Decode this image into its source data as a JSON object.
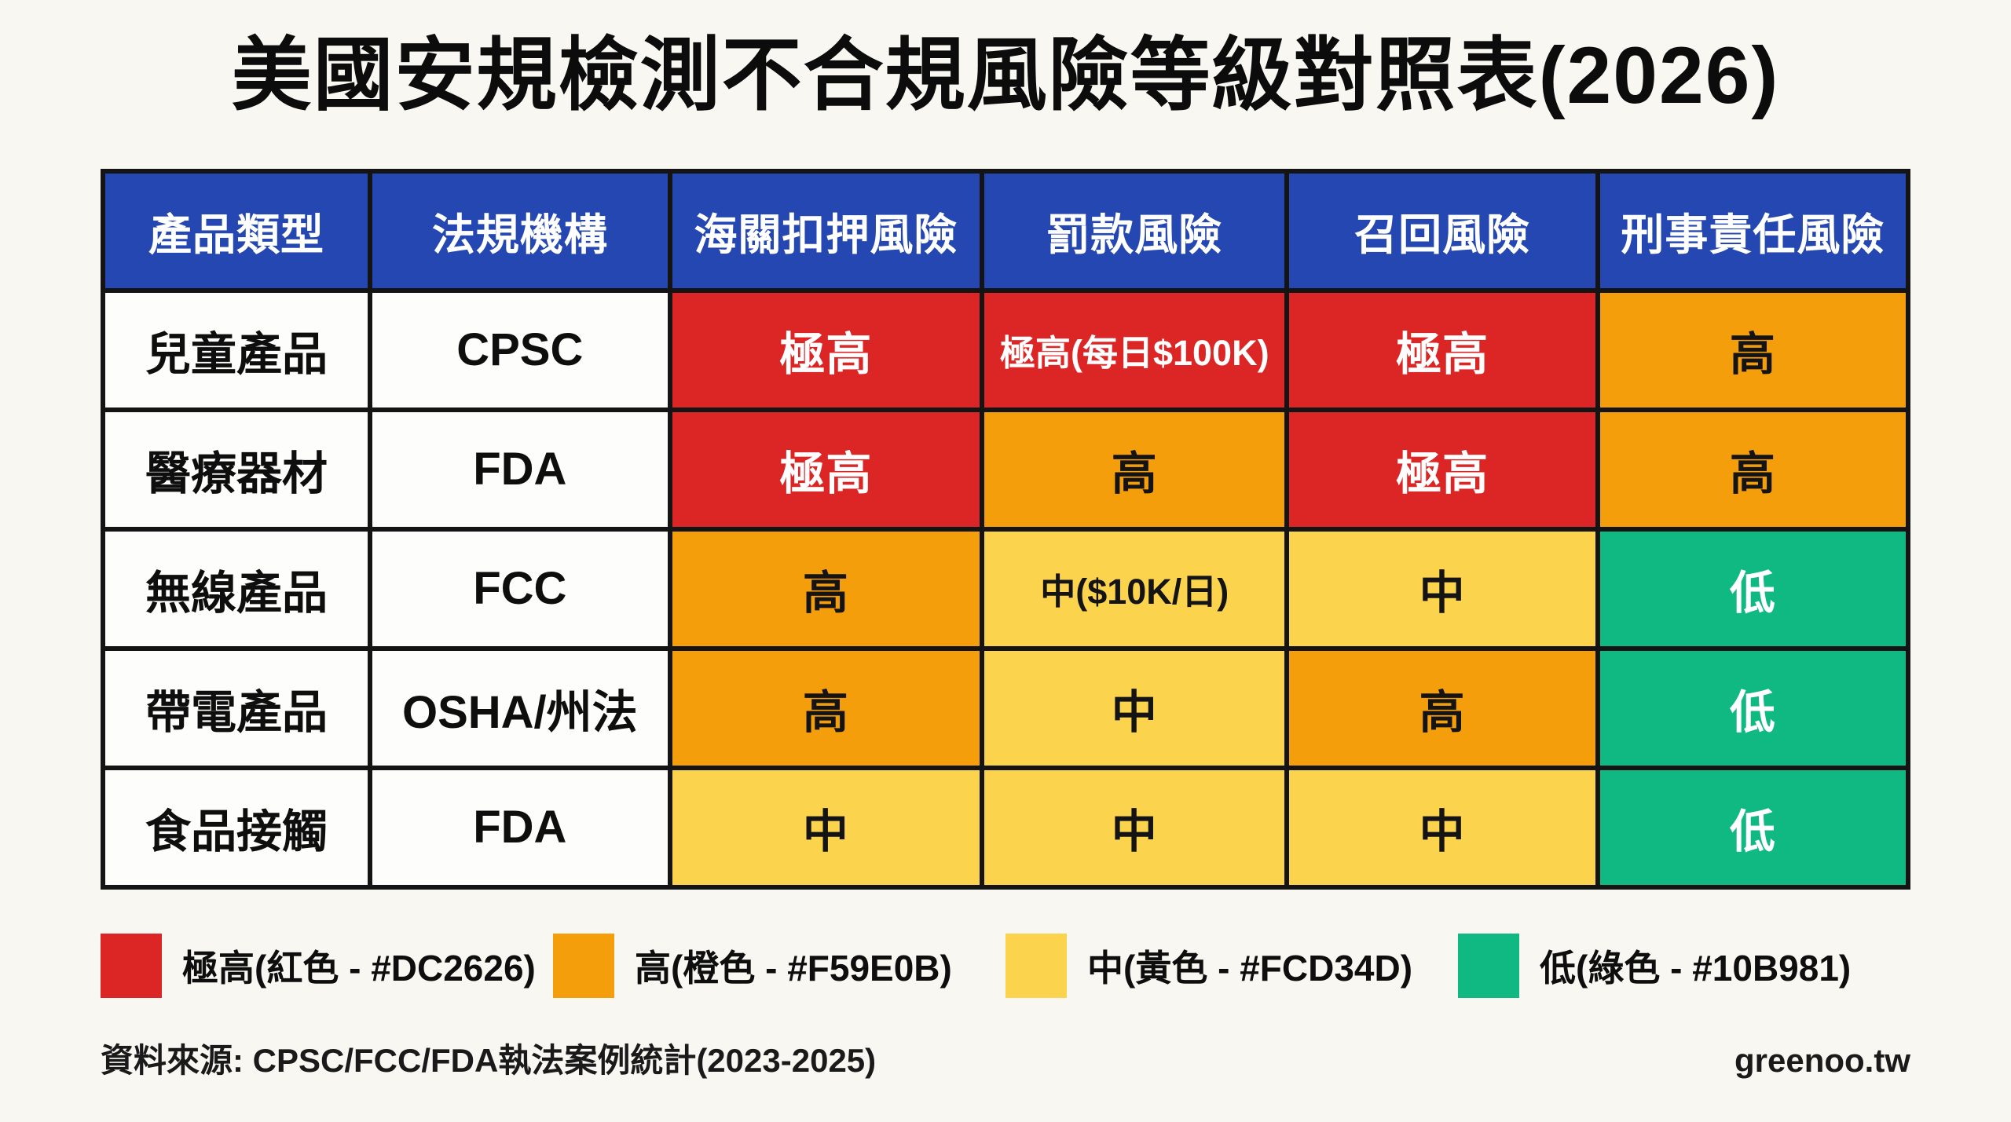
{
  "page": {
    "title": "美國安規檢測不合規風險等級對照表(2026)",
    "source_note": "資料來源: CPSC/FCC/FDA執法案例統計(2023-2025)",
    "brand": "greenoo.tw",
    "background": "#F8F7F2"
  },
  "colors": {
    "header_bg": "#2447B2",
    "header_text": "#FFFFFF",
    "border": "#141414"
  },
  "levels": {
    "very_high": {
      "name": "極高",
      "bg": "#DC2626",
      "text": "#FFFFFF"
    },
    "high": {
      "name": "高",
      "bg": "#F59E0B",
      "text": "#141414"
    },
    "medium": {
      "name": "中",
      "bg": "#FCD34D",
      "text": "#141414"
    },
    "low": {
      "name": "低",
      "bg": "#10B981",
      "text": "#FFFFFF"
    }
  },
  "table": {
    "columns": [
      "產品類型",
      "法規機構",
      "海關扣押風險",
      "罰款風險",
      "召回風險",
      "刑事責任風險"
    ],
    "rows": [
      {
        "product": "兒童產品",
        "agency": "CPSC",
        "cells": [
          {
            "label": "極高",
            "level": "very_high"
          },
          {
            "label": "極高(每日$100K)",
            "level": "very_high"
          },
          {
            "label": "極高",
            "level": "very_high"
          },
          {
            "label": "高",
            "level": "high"
          }
        ]
      },
      {
        "product": "醫療器材",
        "agency": "FDA",
        "cells": [
          {
            "label": "極高",
            "level": "very_high"
          },
          {
            "label": "高",
            "level": "high"
          },
          {
            "label": "極高",
            "level": "very_high"
          },
          {
            "label": "高",
            "level": "high"
          }
        ]
      },
      {
        "product": "無線產品",
        "agency": "FCC",
        "cells": [
          {
            "label": "高",
            "level": "high"
          },
          {
            "label": "中($10K/日)",
            "level": "medium"
          },
          {
            "label": "中",
            "level": "medium"
          },
          {
            "label": "低",
            "level": "low"
          }
        ]
      },
      {
        "product": "帶電產品",
        "agency": "OSHA/州法",
        "cells": [
          {
            "label": "高",
            "level": "high"
          },
          {
            "label": "中",
            "level": "medium"
          },
          {
            "label": "高",
            "level": "high"
          },
          {
            "label": "低",
            "level": "low"
          }
        ]
      },
      {
        "product": "食品接觸",
        "agency": "FDA",
        "cells": [
          {
            "label": "中",
            "level": "medium"
          },
          {
            "label": "中",
            "level": "medium"
          },
          {
            "label": "中",
            "level": "medium"
          },
          {
            "label": "低",
            "level": "low"
          }
        ]
      }
    ]
  },
  "legend": [
    {
      "key": "very-high",
      "label": "極高(紅色 - #DC2626)",
      "color": "#DC2626"
    },
    {
      "key": "high",
      "label": "高(橙色 - #F59E0B)",
      "color": "#F59E0B"
    },
    {
      "key": "medium",
      "label": "中(黃色 - #FCD34D)",
      "color": "#FCD34D"
    },
    {
      "key": "low",
      "label": "低(綠色 - #10B981)",
      "color": "#10B981"
    }
  ],
  "chart_data": {
    "type": "table",
    "title": "美國安規檢測不合規風險等級對照表(2026)",
    "columns": [
      "產品類型",
      "法規機構",
      "海關扣押風險",
      "罰款風險",
      "召回風險",
      "刑事責任風險"
    ],
    "rows": [
      [
        "兒童產品",
        "CPSC",
        "極高",
        "極高(每日$100K)",
        "極高",
        "高"
      ],
      [
        "醫療器材",
        "FDA",
        "極高",
        "高",
        "極高",
        "高"
      ],
      [
        "無線產品",
        "FCC",
        "高",
        "中($10K/日)",
        "中",
        "低"
      ],
      [
        "帶電產品",
        "OSHA/州法",
        "高",
        "中",
        "高",
        "低"
      ],
      [
        "食品接觸",
        "FDA",
        "中",
        "中",
        "中",
        "低"
      ]
    ],
    "risk_scale": [
      "極高",
      "高",
      "中",
      "低"
    ],
    "risk_colors": [
      "#DC2626",
      "#F59E0B",
      "#FCD34D",
      "#10B981"
    ],
    "legend_position": "bottom",
    "source": "CPSC/FCC/FDA執法案例統計(2023-2025)"
  }
}
